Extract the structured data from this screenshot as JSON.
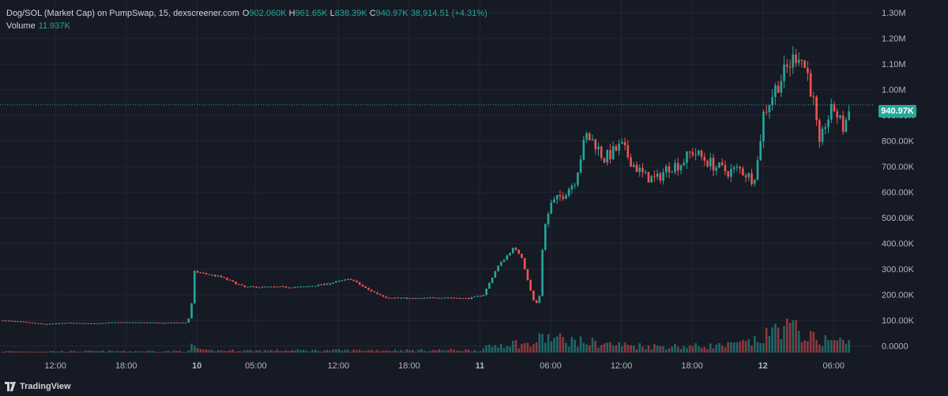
{
  "legend": {
    "symbol": "Dog/SOL (Market Cap) on PumpSwap, 15, dexscreener.com",
    "o_label": "O",
    "o_value": "902.060K",
    "h_label": "H",
    "h_value": "961.65K",
    "l_label": "L",
    "l_value": "838.39K",
    "c_label": "C",
    "c_value": "940.97K",
    "change": "38,914.51 (+4.31%)",
    "volume_label": "Volume",
    "volume_value": "11.937K"
  },
  "price_tag": "940.97K",
  "footer": {
    "logo_icon": "tradingview-logo-icon",
    "brand": "TradingView"
  },
  "colors": {
    "background": "#161a25",
    "up": "#26a69a",
    "down": "#ef5350",
    "grid": "#232733"
  },
  "chart_data": {
    "type": "candlestick",
    "title": "Dog/SOL (Market Cap) on PumpSwap, 15, dexscreener.com",
    "y_ticks": [
      {
        "value": 1300000,
        "label": "1.30M"
      },
      {
        "value": 1200000,
        "label": "1.20M"
      },
      {
        "value": 1100000,
        "label": "1.10M"
      },
      {
        "value": 1000000,
        "label": "1.00M"
      },
      {
        "value": 900000,
        "label": "900.00K"
      },
      {
        "value": 800000,
        "label": "800.00K"
      },
      {
        "value": 700000,
        "label": "700.00K"
      },
      {
        "value": 600000,
        "label": "600.00K"
      },
      {
        "value": 500000,
        "label": "500.00K"
      },
      {
        "value": 400000,
        "label": "400.00K"
      },
      {
        "value": 300000,
        "label": "300.00K"
      },
      {
        "value": 200000,
        "label": "200.00K"
      },
      {
        "value": 100000,
        "label": "100.00K"
      },
      {
        "value": 0,
        "label": "0.0000"
      }
    ],
    "x_ticks": [
      {
        "t": 12,
        "label": "12:00"
      },
      {
        "t": 18,
        "label": "18:00"
      },
      {
        "t": 24,
        "label": "10"
      },
      {
        "t": 29,
        "label": "05:00"
      },
      {
        "t": 36,
        "label": "12:00"
      },
      {
        "t": 42,
        "label": "18:00"
      },
      {
        "t": 48,
        "label": "11"
      },
      {
        "t": 54,
        "label": "06:00"
      },
      {
        "t": 60,
        "label": "12:00"
      },
      {
        "t": 66,
        "label": "18:00"
      },
      {
        "t": 72,
        "label": "12"
      },
      {
        "t": 78,
        "label": "06:00"
      }
    ],
    "t_range": [
      7.3,
      81.4
    ],
    "y_range": [
      -35000,
      1350000
    ],
    "last_close": 940970,
    "anchors": [
      [
        7.3,
        100000
      ],
      [
        9,
        95000
      ],
      [
        11,
        85000
      ],
      [
        13,
        90000
      ],
      [
        15,
        88000
      ],
      [
        17,
        92000
      ],
      [
        19,
        92000
      ],
      [
        21,
        90000
      ],
      [
        23.2,
        92000
      ],
      [
        23.5,
        140000
      ],
      [
        23.8,
        290000
      ],
      [
        26,
        270000
      ],
      [
        28,
        230000
      ],
      [
        30,
        230000
      ],
      [
        33,
        230000
      ],
      [
        35,
        242000
      ],
      [
        37,
        262000
      ],
      [
        38.5,
        220000
      ],
      [
        40,
        190000
      ],
      [
        42.5,
        185000
      ],
      [
        45,
        190000
      ],
      [
        47,
        185000
      ],
      [
        48.3,
        200000
      ],
      [
        49.5,
        310000
      ],
      [
        50.8,
        380000
      ],
      [
        51.5,
        355000
      ],
      [
        52.5,
        180000
      ],
      [
        53,
        160000
      ],
      [
        53.4,
        450000
      ],
      [
        54,
        550000
      ],
      [
        55,
        590000
      ],
      [
        56,
        640000
      ],
      [
        57,
        820000
      ],
      [
        57.8,
        790000
      ],
      [
        58.5,
        730000
      ],
      [
        60,
        780000
      ],
      [
        61,
        710000
      ],
      [
        62,
        660000
      ],
      [
        63,
        650000
      ],
      [
        64,
        700000
      ],
      [
        65,
        710000
      ],
      [
        66,
        760000
      ],
      [
        67,
        730000
      ],
      [
        68,
        700000
      ],
      [
        69,
        680000
      ],
      [
        70,
        690000
      ],
      [
        71.2,
        650000
      ],
      [
        71.6,
        730000
      ],
      [
        72,
        900000
      ],
      [
        73,
        1000000
      ],
      [
        74,
        1080000
      ],
      [
        75,
        1150000
      ],
      [
        75.8,
        1060000
      ],
      [
        76.3,
        950000
      ],
      [
        76.8,
        770000
      ],
      [
        77.3,
        870000
      ],
      [
        78,
        930000
      ],
      [
        78.8,
        850000
      ],
      [
        79.5,
        941000
      ]
    ],
    "volume_profile": [
      [
        7.3,
        5000
      ],
      [
        23.3,
        6000
      ],
      [
        23.6,
        30000
      ],
      [
        24.5,
        8000
      ],
      [
        48,
        10000
      ],
      [
        49,
        25000
      ],
      [
        50.5,
        40000
      ],
      [
        52.3,
        30000
      ],
      [
        53.3,
        60000
      ],
      [
        54.5,
        55000
      ],
      [
        56,
        45000
      ],
      [
        57.5,
        40000
      ],
      [
        60,
        30000
      ],
      [
        63,
        25000
      ],
      [
        66,
        25000
      ],
      [
        69,
        28000
      ],
      [
        71.5,
        45000
      ],
      [
        72.5,
        70000
      ],
      [
        73.5,
        110000
      ],
      [
        75,
        85000
      ],
      [
        76.5,
        50000
      ],
      [
        78,
        50000
      ],
      [
        79.5,
        35000
      ]
    ]
  }
}
